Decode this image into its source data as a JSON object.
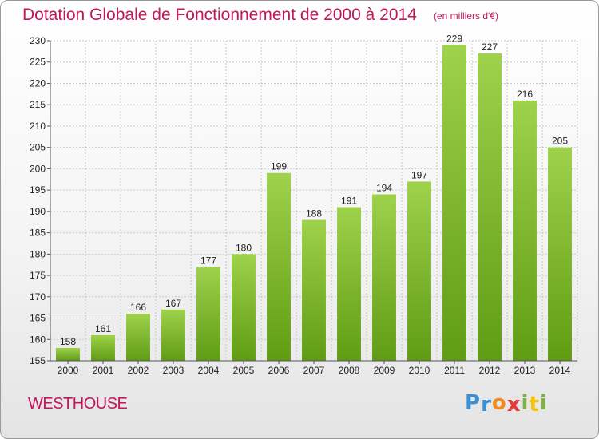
{
  "header": {
    "title": "Dotation Globale de Fonctionnement de 2000 à 2014",
    "subtitle": "(en milliers d'€)"
  },
  "footer": {
    "town": "WESTHOUSE",
    "brand_letters": [
      {
        "char": "P",
        "color": "#3b8fd4"
      },
      {
        "char": "r",
        "color": "#3b8fd4"
      },
      {
        "char": "o",
        "color": "#f28a1c"
      },
      {
        "char": "x",
        "color": "#e53935"
      },
      {
        "char": "i",
        "color": "#7cb342"
      },
      {
        "char": "t",
        "color": "#f4c20d"
      },
      {
        "char": "i",
        "color": "#7cb342"
      }
    ]
  },
  "colors": {
    "title": "#c2185b",
    "bar_top": "#9ed24a",
    "bar_bottom": "#5f9c14",
    "grid": "#c8c8c8"
  },
  "chart_data": {
    "type": "bar",
    "title": "Dotation Globale de Fonctionnement de 2000 à 2014",
    "subtitle": "(en milliers d'€)",
    "xlabel": "",
    "ylabel": "",
    "categories": [
      "2000",
      "2001",
      "2002",
      "2003",
      "2004",
      "2005",
      "2006",
      "2007",
      "2008",
      "2009",
      "2010",
      "2011",
      "2012",
      "2013",
      "2014"
    ],
    "values": [
      158,
      161,
      166,
      167,
      177,
      180,
      199,
      188,
      191,
      194,
      197,
      229,
      227,
      216,
      205
    ],
    "ylim": [
      155,
      230
    ],
    "yticks": [
      155,
      160,
      165,
      170,
      175,
      180,
      185,
      190,
      195,
      200,
      205,
      210,
      215,
      220,
      225,
      230
    ],
    "grid": true,
    "legend": "none"
  }
}
